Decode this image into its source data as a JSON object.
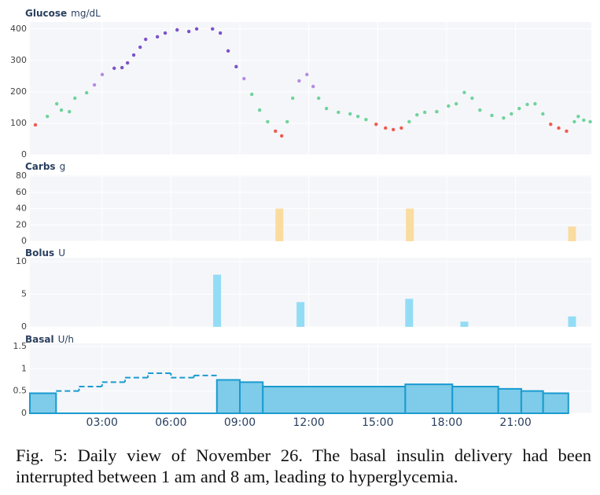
{
  "chart_data": [
    {
      "type": "scatter",
      "title": "Glucose",
      "unit": "mg/dL",
      "xlim": [
        -0.14,
        24.3
      ],
      "ylim": [
        0,
        422
      ],
      "yticks": [
        0,
        100,
        200,
        300,
        400
      ],
      "grid": true,
      "series": [
        {
          "color": "#ef5b4f",
          "x": [
            0.1,
            10.55,
            10.82,
            14.93,
            15.34,
            15.68,
            16.03,
            22.53,
            22.88,
            23.22
          ],
          "values": [
            95,
            75,
            60,
            97,
            85,
            80,
            85,
            97,
            85,
            75
          ]
        },
        {
          "color": "#6fd39a",
          "x": [
            0.62,
            1.03,
            1.23,
            1.58,
            1.82,
            2.33,
            9.52,
            9.86,
            10.21,
            11.06,
            11.3,
            12.43,
            12.77,
            13.29,
            13.8,
            14.14,
            14.49,
            16.37,
            16.71,
            17.05,
            17.57,
            18.08,
            18.42,
            18.77,
            19.11,
            19.45,
            19.97,
            20.48,
            20.82,
            21.16,
            21.51,
            21.85,
            22.19,
            23.56,
            23.73,
            23.97,
            24.25
          ],
          "values": [
            122,
            162,
            142,
            137,
            180,
            197,
            192,
            142,
            105,
            105,
            180,
            180,
            147,
            135,
            130,
            122,
            112,
            105,
            127,
            135,
            137,
            155,
            162,
            198,
            180,
            142,
            125,
            117,
            130,
            147,
            160,
            162,
            130,
            105,
            122,
            110,
            105
          ]
        },
        {
          "color": "#b58be0",
          "x": [
            2.67,
            3.01,
            9.18,
            11.58,
            11.92,
            12.19
          ],
          "values": [
            222,
            255,
            242,
            235,
            255,
            217
          ]
        },
        {
          "color": "#7b52c8",
          "x": [
            3.53,
            3.87,
            4.11,
            4.38,
            4.66,
            4.9,
            5.41,
            5.75,
            6.27,
            6.78,
            7.12,
            7.81,
            8.15,
            8.49,
            8.84
          ],
          "values": [
            275,
            277,
            292,
            317,
            342,
            367,
            375,
            387,
            397,
            392,
            400,
            400,
            387,
            330,
            280
          ]
        }
      ]
    },
    {
      "type": "bar",
      "title": "Carbs",
      "unit": "g",
      "color": "#fbdc9f",
      "xlim": [
        -0.14,
        24.3
      ],
      "ylim": [
        0,
        81
      ],
      "yticks": [
        0,
        20,
        40,
        60,
        80
      ],
      "grid": true,
      "x": [
        10.72,
        16.4,
        23.46
      ],
      "values": [
        40,
        40,
        18
      ]
    },
    {
      "type": "bar",
      "title": "Bolus",
      "unit": "U",
      "color": "#93dcf5",
      "xlim": [
        -0.14,
        24.3
      ],
      "ylim": [
        0,
        10.6
      ],
      "yticks": [
        0,
        5,
        10
      ],
      "grid": true,
      "x": [
        8.01,
        11.64,
        16.37,
        18.77,
        23.46
      ],
      "values": [
        8,
        3.8,
        4.3,
        0.8,
        1.6
      ]
    },
    {
      "type": "step",
      "title": "Basal",
      "unit": "U/h",
      "xlim": [
        -0.14,
        24.3
      ],
      "ylim": [
        0,
        1.57
      ],
      "yticks": [
        0,
        0.5,
        1,
        1.5
      ],
      "grid": true,
      "xticks": [
        {
          "value": 3,
          "label": "03:00"
        },
        {
          "value": 6,
          "label": "06:00"
        },
        {
          "value": 9,
          "label": "09:00"
        },
        {
          "value": 12,
          "label": "12:00"
        },
        {
          "value": 15,
          "label": "15:00"
        },
        {
          "value": 18,
          "label": "18:00"
        },
        {
          "value": 21,
          "label": "21:00"
        }
      ],
      "series": [
        {
          "style": "area",
          "color": "#1a9bd0",
          "fill": "#7ecbea",
          "edges": [
            -0.14,
            1,
            8,
            9,
            10,
            16.2,
            18.25,
            20.25,
            21.25,
            22.2,
            23.3
          ],
          "values": [
            0.45,
            0,
            0.75,
            0.7,
            0.6,
            0.65,
            0.6,
            0.55,
            0.5,
            0.45
          ]
        },
        {
          "style": "dashed",
          "color": "#1a9bd0",
          "edges": [
            1,
            2,
            3,
            4,
            5,
            6,
            7,
            8
          ],
          "values": [
            0.5,
            0.6,
            0.7,
            0.8,
            0.9,
            0.8,
            0.85
          ]
        }
      ]
    }
  ],
  "caption": "Fig. 5: Daily view of November 26. The basal insulin delivery had been interrupted between 1 am and 8 am, leading to hyperglycemia."
}
